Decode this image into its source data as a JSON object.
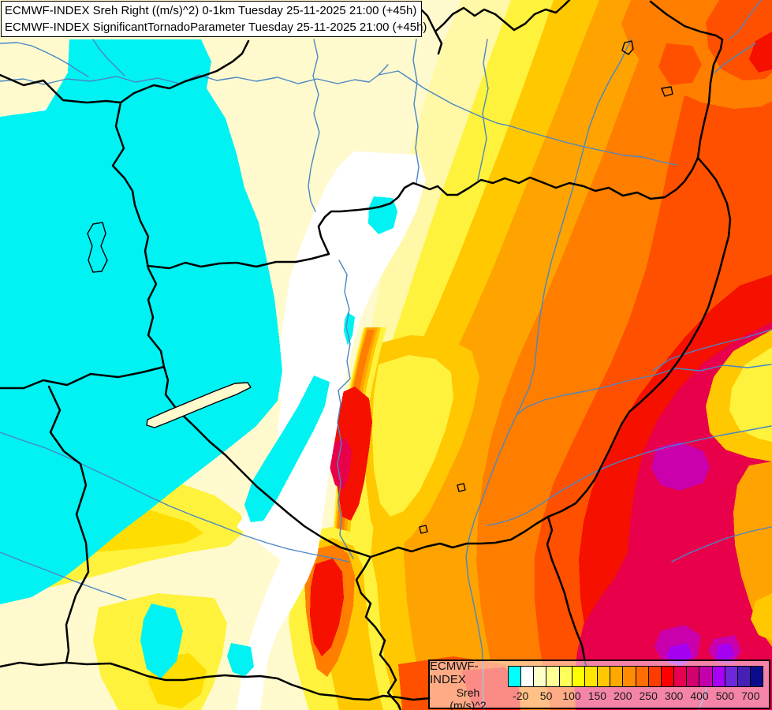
{
  "header": {
    "line1": "ECMWF-INDEX Sreh Right ((m/s)^2) 0-1km Tuesday 25-11-2025 21:00 (+45h)",
    "line2": "ECMWF-INDEX SignificantTornadoParameter Tuesday 25-11-2025 21:00 (+45h)"
  },
  "legend": {
    "title": "ECMWF-INDEX",
    "subtitle": "Sreh",
    "unit": "(m/s)^2",
    "swatches": [
      "#00FFFF",
      "#FFFFFF",
      "#FFFFC8",
      "#FFFF96",
      "#FFFF5A",
      "#FFFF00",
      "#FFE600",
      "#FFC800",
      "#FFA800",
      "#FF8C00",
      "#FF6E00",
      "#FF3C00",
      "#FF0000",
      "#E60050",
      "#D4006E",
      "#C400AA",
      "#AA00F5",
      "#6E28DC",
      "#4620B4",
      "#0A0A8C"
    ],
    "ticks": {
      "labels": [
        "-20",
        "50",
        "100",
        "150",
        "200",
        "250",
        "300",
        "400",
        "500",
        "700"
      ],
      "boundaries": [
        1,
        3,
        5,
        7,
        9,
        11,
        13,
        15,
        17,
        19
      ]
    }
  },
  "chart_data": {
    "type": "heatmap",
    "title": "ECMWF-INDEX Sreh Right ((m/s)^2) 0-1km",
    "valid_time": "Tuesday 25-11-2025 21:00 (+45h)",
    "parameter2": "SignificantTornadoParameter",
    "colorscale_values": [
      -20,
      50,
      100,
      150,
      200,
      250,
      300,
      400,
      500,
      700
    ],
    "colorscale_unit": "(m/s)^2",
    "legend_position": "bottom-right",
    "field_summary": "Storm-relative helicity filled contours over Central Europe: cyan negative values west, cream/yellow transition through center, sharp red ridge along the Danube valley, red to crimson maxima 300-400 east, magenta/purple cores 400-700 southeast"
  }
}
